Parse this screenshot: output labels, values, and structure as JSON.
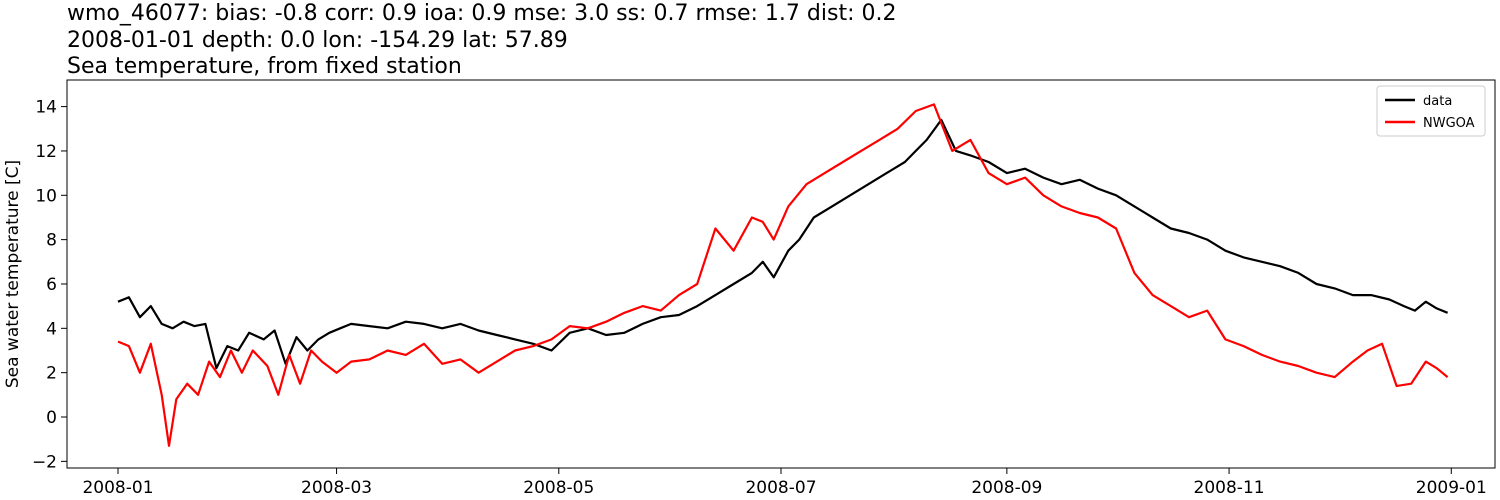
{
  "figure": {
    "title_lines": [
      "wmo_46077: bias: -0.8  corr: 0.9  ioa: 0.9  mse: 3.0  ss: 0.7  rmse: 1.7  dist: 0.2",
      "2008-01-01 depth: 0.0 lon: -154.29 lat: 57.89",
      "Sea temperature, from fixed station"
    ]
  },
  "chart_data": {
    "type": "line",
    "ylabel": "Sea water temperature [C]",
    "xlabel": "",
    "x_is_date": true,
    "xlim": [
      "2007-12-18",
      "2009-01-13"
    ],
    "ylim": [
      -2.3,
      15.2
    ],
    "x_ticks": [
      "2008-01",
      "2008-03",
      "2008-05",
      "2008-07",
      "2008-09",
      "2008-11",
      "2009-01"
    ],
    "y_ticks": [
      -2,
      0,
      2,
      4,
      6,
      8,
      10,
      12,
      14
    ],
    "grid": false,
    "legend_position": "top-right",
    "series": [
      {
        "name": "data",
        "color": "#000000",
        "x": [
          "2008-01-01",
          "2008-01-04",
          "2008-01-07",
          "2008-01-10",
          "2008-01-13",
          "2008-01-16",
          "2008-01-19",
          "2008-01-22",
          "2008-01-25",
          "2008-01-28",
          "2008-01-31",
          "2008-02-03",
          "2008-02-06",
          "2008-02-10",
          "2008-02-13",
          "2008-02-16",
          "2008-02-19",
          "2008-02-22",
          "2008-02-25",
          "2008-02-28",
          "2008-03-02",
          "2008-03-05",
          "2008-03-10",
          "2008-03-15",
          "2008-03-20",
          "2008-03-25",
          "2008-03-30",
          "2008-04-04",
          "2008-04-09",
          "2008-04-14",
          "2008-04-19",
          "2008-04-24",
          "2008-04-29",
          "2008-05-04",
          "2008-05-09",
          "2008-05-14",
          "2008-05-19",
          "2008-05-24",
          "2008-05-29",
          "2008-06-03",
          "2008-06-08",
          "2008-06-13",
          "2008-06-18",
          "2008-06-23",
          "2008-06-26",
          "2008-06-29",
          "2008-07-03",
          "2008-07-06",
          "2008-07-10",
          "2008-07-15",
          "2008-07-20",
          "2008-07-25",
          "2008-07-30",
          "2008-08-04",
          "2008-08-07",
          "2008-08-10",
          "2008-08-14",
          "2008-08-18",
          "2008-08-22",
          "2008-08-27",
          "2008-09-01",
          "2008-09-06",
          "2008-09-11",
          "2008-09-16",
          "2008-09-21",
          "2008-09-26",
          "2008-10-01",
          "2008-10-06",
          "2008-10-11",
          "2008-10-16",
          "2008-10-21",
          "2008-10-26",
          "2008-10-31",
          "2008-11-05",
          "2008-11-10",
          "2008-11-15",
          "2008-11-20",
          "2008-11-25",
          "2008-11-30",
          "2008-12-05",
          "2008-12-10",
          "2008-12-15",
          "2008-12-19",
          "2008-12-22",
          "2008-12-25",
          "2008-12-28",
          "2008-12-31"
        ],
        "y": [
          5.2,
          5.4,
          4.5,
          5.0,
          4.2,
          4.0,
          4.3,
          4.1,
          4.2,
          2.2,
          3.2,
          3.0,
          3.8,
          3.5,
          3.9,
          2.4,
          3.6,
          3.0,
          3.5,
          3.8,
          4.0,
          4.2,
          4.1,
          4.0,
          4.3,
          4.2,
          4.0,
          4.2,
          3.9,
          3.7,
          3.5,
          3.3,
          3.0,
          3.8,
          4.0,
          3.7,
          3.8,
          4.2,
          4.5,
          4.6,
          5.0,
          5.5,
          6.0,
          6.5,
          7.0,
          6.3,
          7.5,
          8.0,
          9.0,
          9.5,
          10.0,
          10.5,
          11.0,
          11.5,
          12.0,
          12.5,
          13.4,
          12.0,
          11.8,
          11.5,
          11.0,
          11.2,
          10.8,
          10.5,
          10.7,
          10.3,
          10.0,
          9.5,
          9.0,
          8.5,
          8.3,
          8.0,
          7.5,
          7.2,
          7.0,
          6.8,
          6.5,
          6.0,
          5.8,
          5.5,
          5.5,
          5.3,
          5.0,
          4.8,
          5.2,
          4.9,
          4.7
        ]
      },
      {
        "name": "NWGOA",
        "color": "#ff0000",
        "x": [
          "2008-01-01",
          "2008-01-04",
          "2008-01-07",
          "2008-01-10",
          "2008-01-13",
          "2008-01-15",
          "2008-01-17",
          "2008-01-20",
          "2008-01-23",
          "2008-01-26",
          "2008-01-29",
          "2008-02-01",
          "2008-02-04",
          "2008-02-07",
          "2008-02-11",
          "2008-02-14",
          "2008-02-17",
          "2008-02-20",
          "2008-02-23",
          "2008-02-26",
          "2008-03-01",
          "2008-03-05",
          "2008-03-10",
          "2008-03-15",
          "2008-03-20",
          "2008-03-25",
          "2008-03-30",
          "2008-04-04",
          "2008-04-09",
          "2008-04-14",
          "2008-04-19",
          "2008-04-24",
          "2008-04-29",
          "2008-05-04",
          "2008-05-09",
          "2008-05-14",
          "2008-05-19",
          "2008-05-24",
          "2008-05-29",
          "2008-06-03",
          "2008-06-08",
          "2008-06-13",
          "2008-06-18",
          "2008-06-23",
          "2008-06-26",
          "2008-06-29",
          "2008-07-03",
          "2008-07-08",
          "2008-07-13",
          "2008-07-18",
          "2008-07-23",
          "2008-07-28",
          "2008-08-02",
          "2008-08-07",
          "2008-08-12",
          "2008-08-17",
          "2008-08-22",
          "2008-08-27",
          "2008-09-01",
          "2008-09-06",
          "2008-09-11",
          "2008-09-16",
          "2008-09-21",
          "2008-09-26",
          "2008-10-01",
          "2008-10-06",
          "2008-10-11",
          "2008-10-16",
          "2008-10-21",
          "2008-10-26",
          "2008-10-31",
          "2008-11-05",
          "2008-11-10",
          "2008-11-15",
          "2008-11-20",
          "2008-11-25",
          "2008-11-30",
          "2008-12-05",
          "2008-12-09",
          "2008-12-13",
          "2008-12-17",
          "2008-12-21",
          "2008-12-25",
          "2008-12-28",
          "2008-12-31"
        ],
        "y": [
          3.4,
          3.2,
          2.0,
          3.3,
          1.0,
          -1.3,
          0.8,
          1.5,
          1.0,
          2.5,
          1.8,
          3.0,
          2.0,
          3.0,
          2.3,
          1.0,
          2.8,
          1.5,
          3.0,
          2.5,
          2.0,
          2.5,
          2.6,
          3.0,
          2.8,
          3.3,
          2.4,
          2.6,
          2.0,
          2.5,
          3.0,
          3.2,
          3.5,
          4.1,
          4.0,
          4.3,
          4.7,
          5.0,
          4.8,
          5.5,
          6.0,
          8.5,
          7.5,
          9.0,
          8.8,
          8.0,
          9.5,
          10.5,
          11.0,
          11.5,
          12.0,
          12.5,
          13.0,
          13.8,
          14.1,
          12.0,
          12.5,
          11.0,
          10.5,
          10.8,
          10.0,
          9.5,
          9.2,
          9.0,
          8.5,
          6.5,
          5.5,
          5.0,
          4.5,
          4.8,
          3.5,
          3.2,
          2.8,
          2.5,
          2.3,
          2.0,
          1.8,
          2.5,
          3.0,
          3.3,
          1.4,
          1.5,
          2.5,
          2.2,
          1.8
        ]
      }
    ]
  }
}
